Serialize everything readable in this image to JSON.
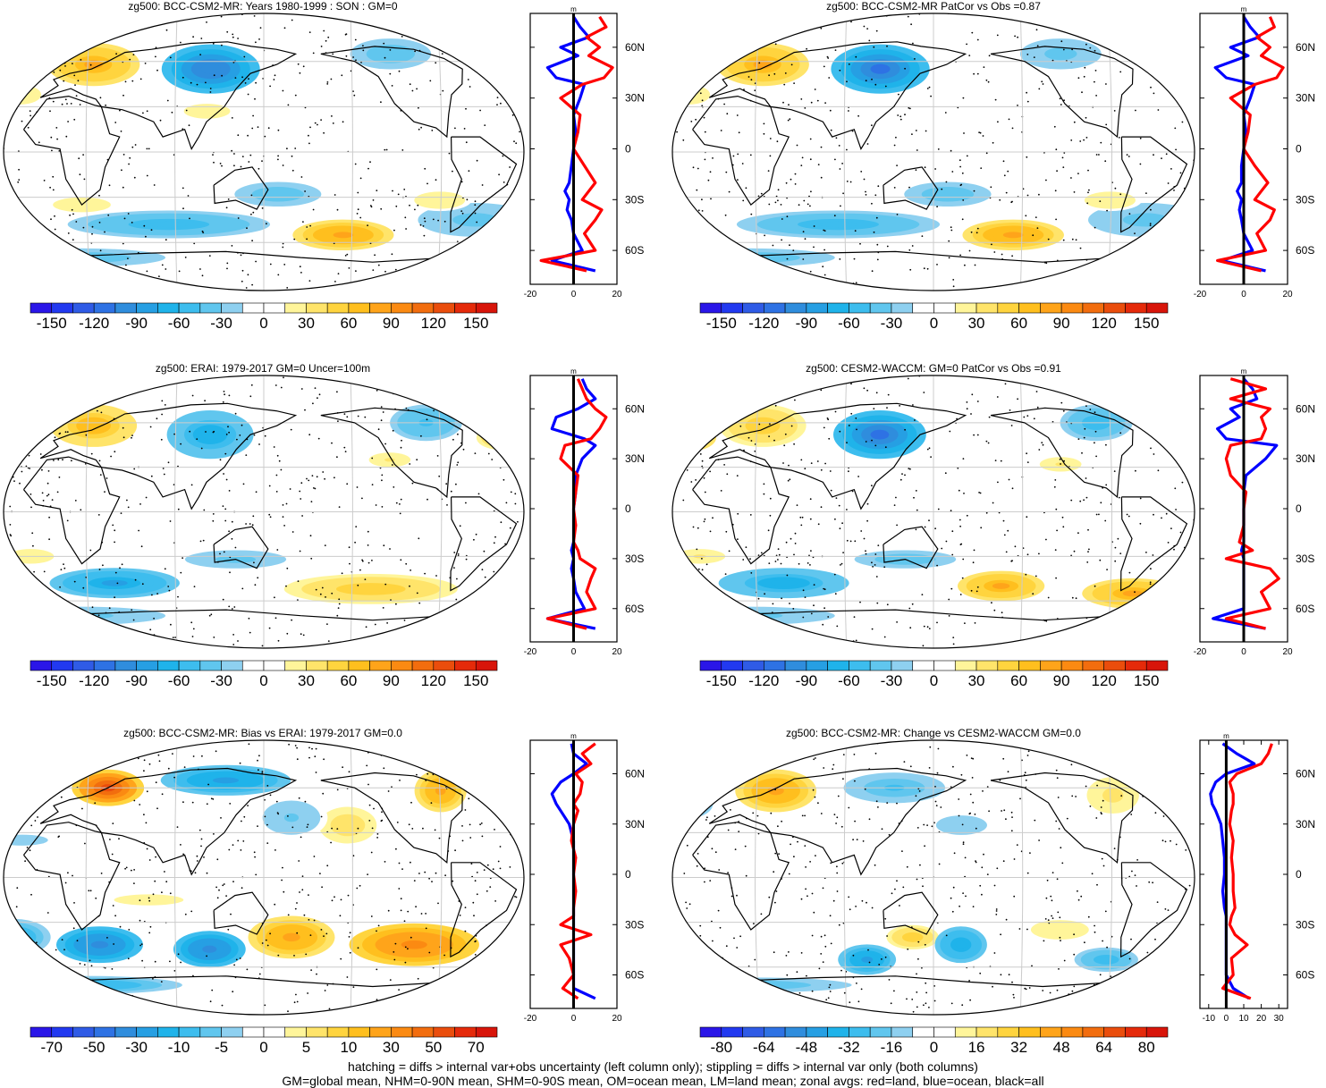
{
  "figure": {
    "caption_line1": "hatching = diffs > internal var+obs uncertainty (left column only); stippling = diffs > internal var only (both columns)",
    "caption_line2": "GM=global mean, NHM=0-90N mean, SHM=0-90S mean, OM=ocean mean, LM=land mean; zonal avgs: red=land, blue=ocean, black=all"
  },
  "colors": {
    "land_zonal": "#ff0000",
    "ocean_zonal": "#0000ff",
    "all_zonal": "#000000",
    "positive_anomaly": "#f07a00",
    "negative_anomaly": "#2a7fd8",
    "grid": "#cccccc"
  },
  "lat_axis": {
    "ticks": [
      "60N",
      "30N",
      "0",
      "30S",
      "60S"
    ],
    "values": [
      60,
      30,
      0,
      -30,
      -60
    ],
    "range": [
      -80,
      80
    ],
    "unit": "m"
  },
  "chart_data": [
    {
      "type": "heatmap",
      "title": "zg500: BCC-CSM2-MR: Years 1980-1999 : SON : GM=0",
      "colorbar": {
        "labels": [
          "-150",
          "-120",
          "-90",
          "-60",
          "-30",
          "0",
          "30",
          "60",
          "90",
          "120",
          "150"
        ],
        "range": [
          -165,
          165
        ],
        "levels": 22
      },
      "zonal": {
        "xlim": [
          -20,
          20
        ],
        "xticks": [
          "-20",
          "0",
          "20"
        ],
        "unit": "m",
        "lats": [
          -80,
          -72,
          -66,
          -60,
          -50,
          -42,
          -36,
          -30,
          -25,
          -20,
          -10,
          0,
          10,
          20,
          30,
          38,
          42,
          48,
          55,
          60,
          66,
          72,
          78
        ],
        "land": [
          null,
          6,
          -15,
          10,
          5,
          10,
          13,
          4,
          7,
          10,
          5,
          0,
          2,
          3,
          -6,
          4,
          14,
          18,
          7,
          12,
          6,
          15,
          12
        ],
        "ocean": [
          null,
          10,
          -10,
          4,
          0,
          -1,
          -3,
          -2,
          -4,
          -2,
          -1,
          0,
          1,
          0,
          3,
          5,
          -8,
          -12,
          2,
          -6,
          7,
          3,
          0
        ]
      },
      "blobs": [
        {
          "lon": 20,
          "lat": 58,
          "rx": 32,
          "ry": 14,
          "v": 75
        },
        {
          "lon": 110,
          "lat": 55,
          "rx": 34,
          "ry": 16,
          "v": -105
        },
        {
          "lon": -110,
          "lat": 65,
          "rx": 28,
          "ry": 10,
          "v": -45
        },
        {
          "lon": -25,
          "lat": 38,
          "rx": 18,
          "ry": 8,
          "v": 30
        },
        {
          "lon": 110,
          "lat": 27,
          "rx": 20,
          "ry": 6,
          "v": 25
        },
        {
          "lon": -55,
          "lat": -45,
          "rx": 40,
          "ry": 11,
          "v": -40
        },
        {
          "lon": 80,
          "lat": -48,
          "rx": 70,
          "ry": 9,
          "v": -60
        },
        {
          "lon": 160,
          "lat": -28,
          "rx": 30,
          "ry": 8,
          "v": -45
        },
        {
          "lon": -150,
          "lat": -55,
          "rx": 35,
          "ry": 10,
          "v": 85
        },
        {
          "lon": 20,
          "lat": -35,
          "rx": 25,
          "ry": 6,
          "v": 25
        },
        {
          "lon": -85,
          "lat": -32,
          "rx": 22,
          "ry": 7,
          "v": 25
        },
        {
          "lon": 0,
          "lat": -70,
          "rx": 60,
          "ry": 6,
          "v": -45
        }
      ]
    },
    {
      "type": "heatmap",
      "title": "zg500: BCC-CSM2-MR PatCor vs Obs =0.87",
      "colorbar": {
        "labels": [
          "-150",
          "-120",
          "-90",
          "-60",
          "-30",
          "0",
          "30",
          "60",
          "90",
          "120",
          "150"
        ],
        "range": [
          -165,
          165
        ],
        "levels": 22
      },
      "zonal": {
        "xlim": [
          -20,
          20
        ],
        "xticks": [
          "-20",
          "0",
          "20"
        ],
        "unit": "m",
        "lats": [
          -80,
          -72,
          -66,
          -60,
          -50,
          -42,
          -36,
          -30,
          -25,
          -20,
          -10,
          0,
          10,
          20,
          30,
          38,
          42,
          48,
          55,
          60,
          66,
          72,
          78
        ],
        "land": [
          null,
          8,
          -12,
          10,
          6,
          12,
          14,
          5,
          8,
          11,
          5,
          0,
          2,
          3,
          -6,
          5,
          15,
          18,
          8,
          12,
          6,
          14,
          12
        ],
        "ocean": [
          null,
          10,
          -10,
          4,
          0,
          -1,
          -2,
          -1,
          -3,
          -1,
          -1,
          0,
          1,
          0,
          3,
          5,
          -8,
          -13,
          2,
          -6,
          7,
          3,
          0
        ]
      },
      "blobs": [
        {
          "lon": 20,
          "lat": 58,
          "rx": 32,
          "ry": 14,
          "v": 75
        },
        {
          "lon": 110,
          "lat": 55,
          "rx": 34,
          "ry": 16,
          "v": -115
        },
        {
          "lon": -110,
          "lat": 65,
          "rx": 28,
          "ry": 10,
          "v": -40
        },
        {
          "lon": -25,
          "lat": 38,
          "rx": 18,
          "ry": 8,
          "v": 30
        },
        {
          "lon": -55,
          "lat": -45,
          "rx": 40,
          "ry": 11,
          "v": -40
        },
        {
          "lon": 80,
          "lat": -48,
          "rx": 70,
          "ry": 9,
          "v": -60
        },
        {
          "lon": 160,
          "lat": -28,
          "rx": 30,
          "ry": 8,
          "v": -45
        },
        {
          "lon": -150,
          "lat": -55,
          "rx": 35,
          "ry": 10,
          "v": 85
        },
        {
          "lon": -85,
          "lat": -32,
          "rx": 22,
          "ry": 7,
          "v": 25
        },
        {
          "lon": 0,
          "lat": -70,
          "rx": 60,
          "ry": 6,
          "v": -45
        }
      ]
    },
    {
      "type": "heatmap",
      "title": "zg500: ERAI: 1979-2017 GM=0 Uncer=100m",
      "colorbar": {
        "labels": [
          "-150",
          "-120",
          "-90",
          "-60",
          "-30",
          "0",
          "30",
          "60",
          "90",
          "120",
          "150"
        ],
        "range": [
          -165,
          165
        ],
        "levels": 22
      },
      "zonal": {
        "xlim": [
          -20,
          20
        ],
        "xticks": [
          "-20",
          "0",
          "20"
        ],
        "unit": "m",
        "lats": [
          -80,
          -72,
          -66,
          -60,
          -50,
          -42,
          -36,
          -30,
          -25,
          -20,
          -10,
          0,
          10,
          20,
          30,
          38,
          42,
          48,
          55,
          60,
          66,
          72,
          78
        ],
        "land": [
          null,
          6,
          -12,
          10,
          6,
          8,
          10,
          3,
          2,
          0,
          1,
          0,
          1,
          2,
          -6,
          -4,
          8,
          12,
          15,
          10,
          6,
          4,
          2
        ],
        "ocean": [
          null,
          10,
          -12,
          5,
          1,
          0,
          -1,
          0,
          -1,
          0,
          0,
          0,
          1,
          1,
          4,
          10,
          5,
          -10,
          -8,
          2,
          10,
          6,
          4
        ]
      },
      "blobs": [
        {
          "lon": 20,
          "lat": 58,
          "rx": 30,
          "ry": 14,
          "v": 70
        },
        {
          "lon": 110,
          "lat": 52,
          "rx": 30,
          "ry": 16,
          "v": -70
        },
        {
          "lon": -85,
          "lat": 60,
          "rx": 25,
          "ry": 12,
          "v": -50
        },
        {
          "lon": -35,
          "lat": 50,
          "rx": 16,
          "ry": 8,
          "v": 50
        },
        {
          "lon": -120,
          "lat": 35,
          "rx": 18,
          "ry": 6,
          "v": 30
        },
        {
          "lon": 40,
          "lat": -48,
          "rx": 45,
          "ry": 10,
          "v": -80
        },
        {
          "lon": 130,
          "lat": -32,
          "rx": 35,
          "ry": 6,
          "v": -40
        },
        {
          "lon": -130,
          "lat": -52,
          "rx": 60,
          "ry": 10,
          "v": 60
        },
        {
          "lon": -15,
          "lat": -30,
          "rx": 20,
          "ry": 6,
          "v": 25
        },
        {
          "lon": 0,
          "lat": -70,
          "rx": 60,
          "ry": 6,
          "v": -40
        }
      ]
    },
    {
      "type": "heatmap",
      "title": "zg500: CESM2-WACCM: GM=0 PatCor vs Obs =0.91",
      "colorbar": {
        "labels": [
          "-150",
          "-120",
          "-90",
          "-60",
          "-30",
          "0",
          "30",
          "60",
          "90",
          "120",
          "150"
        ],
        "range": [
          -165,
          165
        ],
        "levels": 22
      },
      "zonal": {
        "xlim": [
          -20,
          20
        ],
        "xticks": [
          "-20",
          "0",
          "20"
        ],
        "unit": "m",
        "lats": [
          -80,
          -72,
          -66,
          -60,
          -50,
          -42,
          -36,
          -30,
          -25,
          -20,
          -10,
          0,
          10,
          20,
          30,
          38,
          42,
          48,
          55,
          60,
          66,
          72,
          78
        ],
        "land": [
          null,
          10,
          -8,
          12,
          8,
          16,
          12,
          -8,
          4,
          -2,
          0,
          0,
          1,
          -6,
          -8,
          -6,
          8,
          10,
          8,
          12,
          -6,
          10,
          -6
        ],
        "ocean": [
          null,
          10,
          -14,
          0,
          0,
          0,
          0,
          0,
          -1,
          0,
          0,
          0,
          0,
          1,
          10,
          15,
          -8,
          -12,
          -2,
          -6,
          6,
          4,
          0
        ]
      },
      "blobs": [
        {
          "lon": 20,
          "lat": 58,
          "rx": 30,
          "ry": 14,
          "v": 60
        },
        {
          "lon": 110,
          "lat": 52,
          "rx": 32,
          "ry": 16,
          "v": -110
        },
        {
          "lon": -85,
          "lat": 60,
          "rx": 25,
          "ry": 12,
          "v": -60
        },
        {
          "lon": -30,
          "lat": 50,
          "rx": 18,
          "ry": 9,
          "v": 70
        },
        {
          "lon": -120,
          "lat": 32,
          "rx": 18,
          "ry": 6,
          "v": 30
        },
        {
          "lon": 40,
          "lat": -48,
          "rx": 45,
          "ry": 10,
          "v": -70
        },
        {
          "lon": 130,
          "lat": -32,
          "rx": 35,
          "ry": 6,
          "v": -45
        },
        {
          "lon": -160,
          "lat": -50,
          "rx": 30,
          "ry": 10,
          "v": 80
        },
        {
          "lon": -60,
          "lat": -55,
          "rx": 35,
          "ry": 10,
          "v": 80
        },
        {
          "lon": -15,
          "lat": -30,
          "rx": 22,
          "ry": 6,
          "v": 30
        },
        {
          "lon": 0,
          "lat": -70,
          "rx": 60,
          "ry": 6,
          "v": -40
        }
      ]
    },
    {
      "type": "heatmap",
      "title": "zg500: BCC-CSM2-MR: Bias vs ERAI: 1979-2017  GM=0.0",
      "colorbar": {
        "labels": [
          "-70",
          "-50",
          "-30",
          "-10",
          "-5",
          "0",
          "5",
          "10",
          "30",
          "50",
          "70"
        ],
        "range": [
          -80,
          80
        ],
        "levels": 22
      },
      "zonal": {
        "xlim": [
          -20,
          20
        ],
        "xticks": [
          "-20",
          "0",
          "20"
        ],
        "unit": "m",
        "lats": [
          -80,
          -74,
          -68,
          -60,
          -50,
          -42,
          -36,
          -30,
          -25,
          -20,
          -10,
          0,
          10,
          20,
          30,
          38,
          42,
          48,
          55,
          60,
          66,
          72,
          78
        ],
        "land": [
          null,
          2,
          -5,
          0,
          -2,
          -6,
          8,
          -6,
          0,
          0,
          1,
          0,
          1,
          -1,
          0,
          2,
          0,
          3,
          4,
          1,
          8,
          4,
          10
        ],
        "ocean": [
          null,
          10,
          0,
          0,
          0,
          0,
          0,
          0,
          0,
          0,
          0,
          0,
          0,
          0,
          -2,
          -6,
          -8,
          -10,
          -6,
          0,
          6,
          0,
          -1
        ]
      },
      "blobs": [
        {
          "lon": 30,
          "lat": 60,
          "rx": 25,
          "ry": 12,
          "v": 60
        },
        {
          "lon": 120,
          "lat": 65,
          "rx": 45,
          "ry": 10,
          "v": -40
        },
        {
          "lon": -75,
          "lat": 58,
          "rx": 18,
          "ry": 14,
          "v": 40
        },
        {
          "lon": -150,
          "lat": 35,
          "rx": 20,
          "ry": 12,
          "v": 20
        },
        {
          "lon": 170,
          "lat": 40,
          "rx": 25,
          "ry": 14,
          "v": -15
        },
        {
          "lon": 70,
          "lat": -15,
          "rx": 40,
          "ry": 6,
          "v": 10
        },
        {
          "lon": 30,
          "lat": -45,
          "rx": 30,
          "ry": 12,
          "v": -50
        },
        {
          "lon": 110,
          "lat": -48,
          "rx": 25,
          "ry": 12,
          "v": -50
        },
        {
          "lon": 170,
          "lat": -40,
          "rx": 30,
          "ry": 14,
          "v": 40
        },
        {
          "lon": -100,
          "lat": -45,
          "rx": 45,
          "ry": 14,
          "v": 50
        },
        {
          "lon": -30,
          "lat": -40,
          "rx": 25,
          "ry": 12,
          "v": -30
        },
        {
          "lon": -20,
          "lat": 25,
          "rx": 30,
          "ry": 6,
          "v": -10
        },
        {
          "lon": 0,
          "lat": -72,
          "rx": 70,
          "ry": 6,
          "v": -30
        }
      ]
    },
    {
      "type": "heatmap",
      "title": "zg500: BCC-CSM2-MR: Change vs CESM2-WACCM GM=0.0",
      "colorbar": {
        "labels": [
          "-80",
          "-64",
          "-48",
          "-32",
          "-16",
          "0",
          "16",
          "32",
          "48",
          "64",
          "80"
        ],
        "range": [
          -88,
          88
        ],
        "levels": 22
      },
      "zonal": {
        "xlim": [
          -15,
          35
        ],
        "xticks": [
          "-10",
          "0",
          "10",
          "20",
          "30"
        ],
        "unit": "m",
        "lats": [
          -80,
          -74,
          -68,
          -60,
          -50,
          -42,
          -36,
          -30,
          -25,
          -20,
          -10,
          0,
          10,
          20,
          30,
          38,
          42,
          48,
          55,
          60,
          66,
          72,
          78
        ],
        "land": [
          null,
          14,
          -2,
          4,
          3,
          12,
          5,
          2,
          3,
          5,
          4,
          4,
          3,
          4,
          2,
          3,
          4,
          4,
          2,
          6,
          20,
          24,
          26
        ],
        "ocean": [
          null,
          13,
          4,
          0,
          0,
          0,
          0,
          0,
          0,
          -1,
          -2,
          -1,
          -1,
          -2,
          -3,
          -6,
          -8,
          -9,
          -6,
          0,
          16,
          6,
          -2
        ]
      },
      "blobs": [
        {
          "lon": 30,
          "lat": 58,
          "rx": 28,
          "ry": 14,
          "v": 45
        },
        {
          "lon": 120,
          "lat": 60,
          "rx": 35,
          "ry": 10,
          "v": -25
        },
        {
          "lon": -75,
          "lat": 55,
          "rx": 18,
          "ry": 12,
          "v": 20
        },
        {
          "lon": -30,
          "lat": 50,
          "rx": 16,
          "ry": 10,
          "v": -20
        },
        {
          "lon": 170,
          "lat": 35,
          "rx": 22,
          "ry": 8,
          "v": -15
        },
        {
          "lon": 100,
          "lat": -55,
          "rx": 20,
          "ry": 10,
          "v": -45
        },
        {
          "lon": 135,
          "lat": -40,
          "rx": 18,
          "ry": 8,
          "v": 30
        },
        {
          "lon": 170,
          "lat": -45,
          "rx": 18,
          "ry": 12,
          "v": -40
        },
        {
          "lon": -80,
          "lat": -55,
          "rx": 22,
          "ry": 8,
          "v": -30
        },
        {
          "lon": -120,
          "lat": -35,
          "rx": 25,
          "ry": 8,
          "v": 15
        },
        {
          "lon": 0,
          "lat": -72,
          "rx": 70,
          "ry": 5,
          "v": -25
        }
      ]
    }
  ]
}
